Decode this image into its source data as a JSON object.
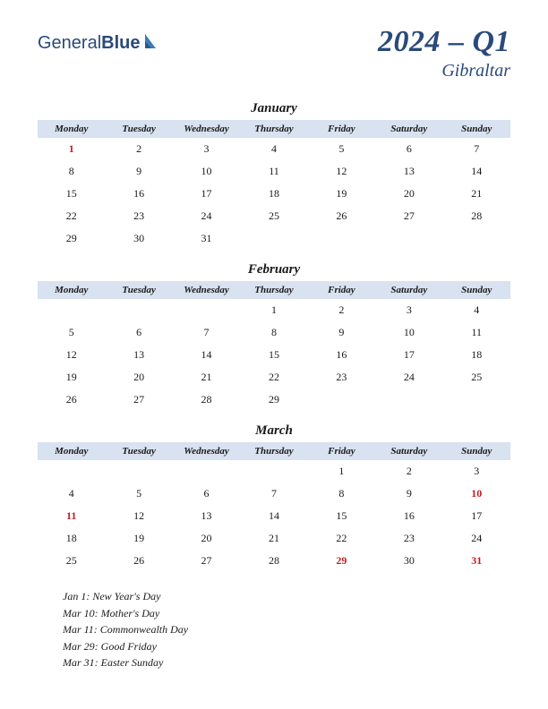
{
  "logo": {
    "text1": "General",
    "text2": "Blue"
  },
  "title": {
    "main": "2024 – Q1",
    "sub": "Gibraltar"
  },
  "colors": {
    "brand": "#2a4a7a",
    "header_bg": "#d8e2f0",
    "holiday": "#c41e1e",
    "text": "#1a1a1a",
    "background": "#ffffff"
  },
  "typography": {
    "title_fontsize": 34,
    "subtitle_fontsize": 20,
    "month_fontsize": 15,
    "dayhead_fontsize": 11,
    "cell_fontsize": 12,
    "holiday_fontsize": 12
  },
  "day_headers": [
    "Monday",
    "Tuesday",
    "Wednesday",
    "Thursday",
    "Friday",
    "Saturday",
    "Sunday"
  ],
  "months": [
    {
      "name": "January",
      "weeks": [
        [
          {
            "d": 1,
            "h": true
          },
          {
            "d": 2
          },
          {
            "d": 3
          },
          {
            "d": 4
          },
          {
            "d": 5
          },
          {
            "d": 6
          },
          {
            "d": 7
          }
        ],
        [
          {
            "d": 8
          },
          {
            "d": 9
          },
          {
            "d": 10
          },
          {
            "d": 11
          },
          {
            "d": 12
          },
          {
            "d": 13
          },
          {
            "d": 14
          }
        ],
        [
          {
            "d": 15
          },
          {
            "d": 16
          },
          {
            "d": 17
          },
          {
            "d": 18
          },
          {
            "d": 19
          },
          {
            "d": 20
          },
          {
            "d": 21
          }
        ],
        [
          {
            "d": 22
          },
          {
            "d": 23
          },
          {
            "d": 24
          },
          {
            "d": 25
          },
          {
            "d": 26
          },
          {
            "d": 27
          },
          {
            "d": 28
          }
        ],
        [
          {
            "d": 29
          },
          {
            "d": 30
          },
          {
            "d": 31
          },
          null,
          null,
          null,
          null
        ]
      ]
    },
    {
      "name": "February",
      "weeks": [
        [
          null,
          null,
          null,
          {
            "d": 1
          },
          {
            "d": 2
          },
          {
            "d": 3
          },
          {
            "d": 4
          }
        ],
        [
          {
            "d": 5
          },
          {
            "d": 6
          },
          {
            "d": 7
          },
          {
            "d": 8
          },
          {
            "d": 9
          },
          {
            "d": 10
          },
          {
            "d": 11
          }
        ],
        [
          {
            "d": 12
          },
          {
            "d": 13
          },
          {
            "d": 14
          },
          {
            "d": 15
          },
          {
            "d": 16
          },
          {
            "d": 17
          },
          {
            "d": 18
          }
        ],
        [
          {
            "d": 19
          },
          {
            "d": 20
          },
          {
            "d": 21
          },
          {
            "d": 22
          },
          {
            "d": 23
          },
          {
            "d": 24
          },
          {
            "d": 25
          }
        ],
        [
          {
            "d": 26
          },
          {
            "d": 27
          },
          {
            "d": 28
          },
          {
            "d": 29
          },
          null,
          null,
          null
        ]
      ]
    },
    {
      "name": "March",
      "weeks": [
        [
          null,
          null,
          null,
          null,
          {
            "d": 1
          },
          {
            "d": 2
          },
          {
            "d": 3
          }
        ],
        [
          {
            "d": 4
          },
          {
            "d": 5
          },
          {
            "d": 6
          },
          {
            "d": 7
          },
          {
            "d": 8
          },
          {
            "d": 9
          },
          {
            "d": 10,
            "h": true
          }
        ],
        [
          {
            "d": 11,
            "h": true
          },
          {
            "d": 12
          },
          {
            "d": 13
          },
          {
            "d": 14
          },
          {
            "d": 15
          },
          {
            "d": 16
          },
          {
            "d": 17
          }
        ],
        [
          {
            "d": 18
          },
          {
            "d": 19
          },
          {
            "d": 20
          },
          {
            "d": 21
          },
          {
            "d": 22
          },
          {
            "d": 23
          },
          {
            "d": 24
          }
        ],
        [
          {
            "d": 25
          },
          {
            "d": 26
          },
          {
            "d": 27
          },
          {
            "d": 28
          },
          {
            "d": 29,
            "h": true
          },
          {
            "d": 30
          },
          {
            "d": 31,
            "h": true
          }
        ]
      ]
    }
  ],
  "holidays": [
    "Jan 1: New Year's Day",
    "Mar 10: Mother's Day",
    "Mar 11: Commonwealth Day",
    "Mar 29: Good Friday",
    "Mar 31: Easter Sunday"
  ]
}
